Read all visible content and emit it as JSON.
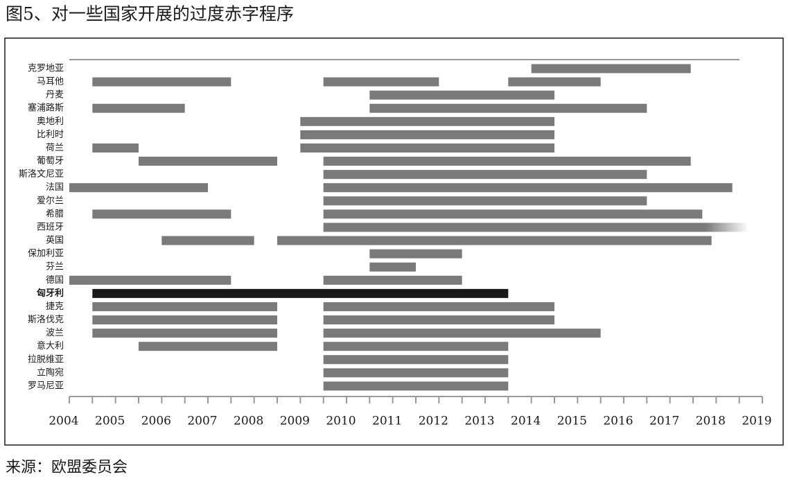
{
  "chart_data": {
    "type": "gantt",
    "title": "图5、对一些国家开展的过度赤字程序",
    "source": "来源：欧盟委员会",
    "categories": [
      "克罗地亚",
      "马耳他",
      "丹麦",
      "塞浦路斯",
      "奥地利",
      "比利时",
      "荷兰",
      "葡萄牙",
      "斯洛文尼亚",
      "法国",
      "爱尔兰",
      "希腊",
      "西班牙",
      "英国",
      "保加利亚",
      "芬兰",
      "德国",
      "匈牙利",
      "捷克",
      "斯洛伐克",
      "波兰",
      "意大利",
      "拉脱维亚",
      "立陶宛",
      "罗马尼亚"
    ],
    "intervals": [
      [
        [
          2014.0,
          2017.45
        ]
      ],
      [
        [
          2004.5,
          2007.5
        ],
        [
          2009.5,
          2012.0
        ],
        [
          2013.5,
          2015.5
        ]
      ],
      [
        [
          2010.5,
          2014.5
        ]
      ],
      [
        [
          2004.5,
          2006.5
        ],
        [
          2010.5,
          2016.5
        ]
      ],
      [
        [
          2009.0,
          2014.5
        ]
      ],
      [
        [
          2009.0,
          2014.5
        ]
      ],
      [
        [
          2004.5,
          2005.5
        ],
        [
          2009.0,
          2014.5
        ]
      ],
      [
        [
          2005.5,
          2008.5
        ],
        [
          2009.5,
          2017.45
        ]
      ],
      [
        [
          2009.5,
          2016.5
        ]
      ],
      [
        [
          2004.0,
          2007.0
        ],
        [
          2009.5,
          2018.35
        ]
      ],
      [
        [
          2009.5,
          2016.5
        ]
      ],
      [
        [
          2004.5,
          2007.5
        ],
        [
          2009.5,
          2017.7
        ]
      ],
      [
        [
          2009.5,
          2018.7
        ]
      ],
      [
        [
          2006.0,
          2008.0
        ],
        [
          2008.5,
          2017.9
        ]
      ],
      [
        [
          2010.5,
          2012.5
        ]
      ],
      [
        [
          2010.5,
          2011.5
        ]
      ],
      [
        [
          2004.0,
          2007.5
        ],
        [
          2009.5,
          2012.5
        ]
      ],
      [
        [
          2004.5,
          2013.5
        ]
      ],
      [
        [
          2004.5,
          2008.5
        ],
        [
          2009.5,
          2014.5
        ]
      ],
      [
        [
          2004.5,
          2008.5
        ],
        [
          2009.5,
          2014.5
        ]
      ],
      [
        [
          2004.5,
          2008.5
        ],
        [
          2009.5,
          2015.5
        ]
      ],
      [
        [
          2005.5,
          2008.5
        ],
        [
          2009.5,
          2013.5
        ]
      ],
      [
        [
          2009.5,
          2013.5
        ]
      ],
      [
        [
          2009.5,
          2013.5
        ]
      ],
      [
        [
          2009.5,
          2013.5
        ]
      ]
    ],
    "color": "#7a7a7a",
    "highlight": 17,
    "highlight_color": "#1a1a1a",
    "open_ended": [
      12
    ],
    "xlim": [
      2004,
      2019
    ],
    "xticks": [
      2004,
      2005,
      2006,
      2007,
      2008,
      2009,
      2010,
      2011,
      2012,
      2013,
      2014,
      2015,
      2016,
      2017,
      2018,
      2019
    ]
  }
}
